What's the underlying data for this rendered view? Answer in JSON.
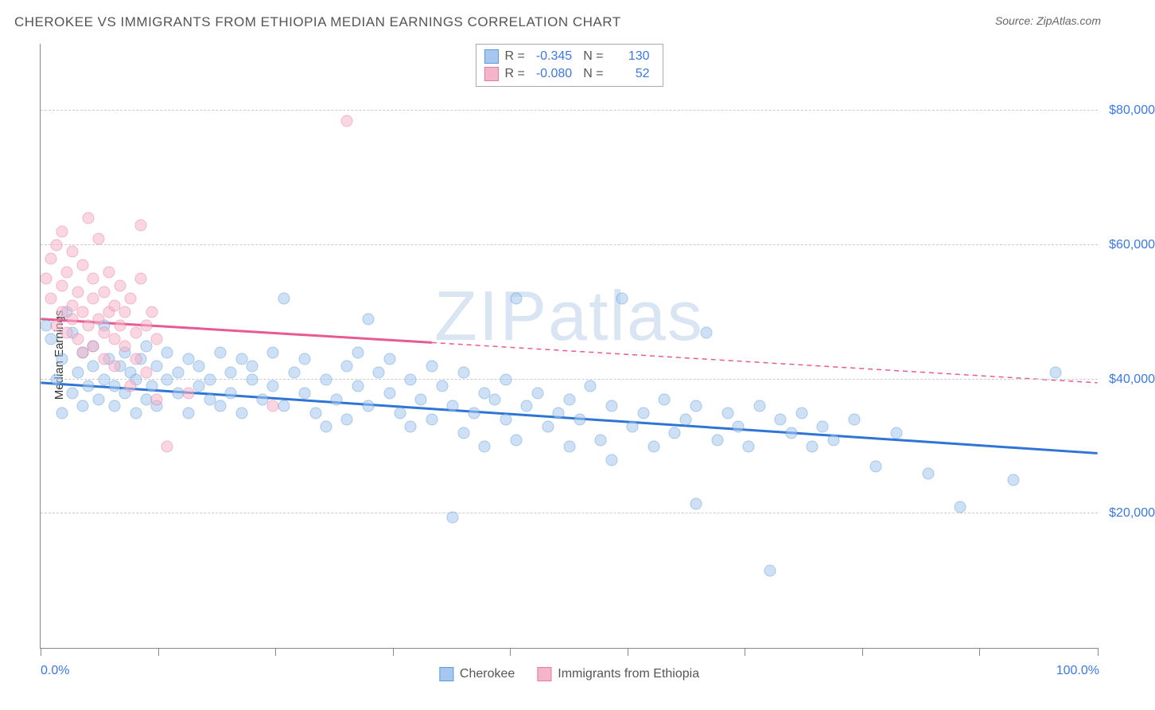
{
  "title": "CHEROKEE VS IMMIGRANTS FROM ETHIOPIA MEDIAN EARNINGS CORRELATION CHART",
  "source": "Source: ZipAtlas.com",
  "watermark": "ZIPatlas",
  "chart": {
    "type": "scatter",
    "y_axis_label": "Median Earnings",
    "x_start_label": "0.0%",
    "x_end_label": "100.0%",
    "xlim": [
      0,
      100
    ],
    "ylim": [
      0,
      90000
    ],
    "y_ticks": [
      {
        "value": 20000,
        "label": "$20,000"
      },
      {
        "value": 40000,
        "label": "$40,000"
      },
      {
        "value": 60000,
        "label": "$60,000"
      },
      {
        "value": 80000,
        "label": "$80,000"
      }
    ],
    "x_tick_positions": [
      0,
      11.1,
      22.2,
      33.3,
      44.4,
      55.5,
      66.6,
      77.7,
      88.8,
      100
    ],
    "background_color": "#ffffff",
    "grid_color": "#cccccc",
    "axis_color": "#888888",
    "marker_radius": 7.5,
    "marker_opacity": 0.55,
    "title_fontsize": 17,
    "label_fontsize": 15,
    "tick_fontsize": 16,
    "series": [
      {
        "name": "Cherokee",
        "fill_color": "#a6c8f0",
        "stroke_color": "#5b9bd5",
        "line_color": "#2e75d6",
        "R": "-0.345",
        "N": "130",
        "trend": {
          "x1": 0,
          "y1": 39500,
          "x2": 100,
          "y2": 29000,
          "solid_until": 100,
          "dash": false
        },
        "points": [
          [
            0.5,
            48000
          ],
          [
            1,
            46000
          ],
          [
            1.5,
            40000
          ],
          [
            2,
            35000
          ],
          [
            2,
            43000
          ],
          [
            2.5,
            50000
          ],
          [
            3,
            47000
          ],
          [
            3,
            38000
          ],
          [
            3.5,
            41000
          ],
          [
            4,
            44000
          ],
          [
            4,
            36000
          ],
          [
            4.5,
            39000
          ],
          [
            5,
            42000
          ],
          [
            5,
            45000
          ],
          [
            5.5,
            37000
          ],
          [
            6,
            40000
          ],
          [
            6,
            48000
          ],
          [
            6.5,
            43000
          ],
          [
            7,
            39000
          ],
          [
            7,
            36000
          ],
          [
            7.5,
            42000
          ],
          [
            8,
            44000
          ],
          [
            8,
            38000
          ],
          [
            8.5,
            41000
          ],
          [
            9,
            35000
          ],
          [
            9,
            40000
          ],
          [
            9.5,
            43000
          ],
          [
            10,
            37000
          ],
          [
            10,
            45000
          ],
          [
            10.5,
            39000
          ],
          [
            11,
            42000
          ],
          [
            11,
            36000
          ],
          [
            12,
            40000
          ],
          [
            12,
            44000
          ],
          [
            13,
            38000
          ],
          [
            13,
            41000
          ],
          [
            14,
            43000
          ],
          [
            14,
            35000
          ],
          [
            15,
            39000
          ],
          [
            15,
            42000
          ],
          [
            16,
            37000
          ],
          [
            16,
            40000
          ],
          [
            17,
            44000
          ],
          [
            17,
            36000
          ],
          [
            18,
            41000
          ],
          [
            18,
            38000
          ],
          [
            19,
            43000
          ],
          [
            19,
            35000
          ],
          [
            20,
            40000
          ],
          [
            20,
            42000
          ],
          [
            21,
            37000
          ],
          [
            22,
            39000
          ],
          [
            22,
            44000
          ],
          [
            23,
            52000
          ],
          [
            23,
            36000
          ],
          [
            24,
            41000
          ],
          [
            25,
            38000
          ],
          [
            25,
            43000
          ],
          [
            26,
            35000
          ],
          [
            27,
            40000
          ],
          [
            27,
            33000
          ],
          [
            28,
            37000
          ],
          [
            29,
            42000
          ],
          [
            29,
            34000
          ],
          [
            30,
            39000
          ],
          [
            30,
            44000
          ],
          [
            31,
            36000
          ],
          [
            31,
            49000
          ],
          [
            32,
            41000
          ],
          [
            33,
            38000
          ],
          [
            33,
            43000
          ],
          [
            34,
            35000
          ],
          [
            35,
            40000
          ],
          [
            35,
            33000
          ],
          [
            36,
            37000
          ],
          [
            37,
            42000
          ],
          [
            37,
            34000
          ],
          [
            38,
            39000
          ],
          [
            39,
            36000
          ],
          [
            39,
            19500
          ],
          [
            40,
            41000
          ],
          [
            40,
            32000
          ],
          [
            41,
            35000
          ],
          [
            42,
            38000
          ],
          [
            42,
            30000
          ],
          [
            43,
            37000
          ],
          [
            44,
            34000
          ],
          [
            44,
            40000
          ],
          [
            45,
            52000
          ],
          [
            45,
            31000
          ],
          [
            46,
            36000
          ],
          [
            47,
            38000
          ],
          [
            48,
            33000
          ],
          [
            49,
            35000
          ],
          [
            50,
            37000
          ],
          [
            50,
            30000
          ],
          [
            51,
            34000
          ],
          [
            52,
            39000
          ],
          [
            53,
            31000
          ],
          [
            54,
            36000
          ],
          [
            54,
            28000
          ],
          [
            55,
            52000
          ],
          [
            56,
            33000
          ],
          [
            57,
            35000
          ],
          [
            58,
            30000
          ],
          [
            59,
            37000
          ],
          [
            60,
            32000
          ],
          [
            61,
            34000
          ],
          [
            62,
            36000
          ],
          [
            62,
            21500
          ],
          [
            63,
            47000
          ],
          [
            64,
            31000
          ],
          [
            65,
            35000
          ],
          [
            66,
            33000
          ],
          [
            67,
            30000
          ],
          [
            68,
            36000
          ],
          [
            69,
            11500
          ],
          [
            70,
            34000
          ],
          [
            71,
            32000
          ],
          [
            72,
            35000
          ],
          [
            73,
            30000
          ],
          [
            74,
            33000
          ],
          [
            75,
            31000
          ],
          [
            77,
            34000
          ],
          [
            79,
            27000
          ],
          [
            81,
            32000
          ],
          [
            84,
            26000
          ],
          [
            87,
            21000
          ],
          [
            92,
            25000
          ],
          [
            96,
            41000
          ]
        ]
      },
      {
        "name": "Immigrants from Ethiopia",
        "fill_color": "#f5b5c8",
        "stroke_color": "#e87aa0",
        "line_color": "#e85a92",
        "R": "-0.080",
        "N": "52",
        "trend": {
          "x1": 0,
          "y1": 49000,
          "x2": 100,
          "y2": 39500,
          "solid_until": 37,
          "dash": true
        },
        "points": [
          [
            0.5,
            55000
          ],
          [
            1,
            52000
          ],
          [
            1,
            58000
          ],
          [
            1.5,
            48000
          ],
          [
            1.5,
            60000
          ],
          [
            2,
            54000
          ],
          [
            2,
            50000
          ],
          [
            2,
            62000
          ],
          [
            2.5,
            47000
          ],
          [
            2.5,
            56000
          ],
          [
            3,
            51000
          ],
          [
            3,
            49000
          ],
          [
            3,
            59000
          ],
          [
            3.5,
            53000
          ],
          [
            3.5,
            46000
          ],
          [
            4,
            50000
          ],
          [
            4,
            57000
          ],
          [
            4,
            44000
          ],
          [
            4.5,
            64000
          ],
          [
            4.5,
            48000
          ],
          [
            5,
            52000
          ],
          [
            5,
            45000
          ],
          [
            5,
            55000
          ],
          [
            5.5,
            61000
          ],
          [
            5.5,
            49000
          ],
          [
            6,
            47000
          ],
          [
            6,
            53000
          ],
          [
            6,
            43000
          ],
          [
            6.5,
            50000
          ],
          [
            6.5,
            56000
          ],
          [
            7,
            46000
          ],
          [
            7,
            51000
          ],
          [
            7,
            42000
          ],
          [
            7.5,
            48000
          ],
          [
            7.5,
            54000
          ],
          [
            8,
            45000
          ],
          [
            8,
            50000
          ],
          [
            8.5,
            39000
          ],
          [
            8.5,
            52000
          ],
          [
            9,
            47000
          ],
          [
            9,
            43000
          ],
          [
            9.5,
            55000
          ],
          [
            9.5,
            63000
          ],
          [
            10,
            48000
          ],
          [
            10,
            41000
          ],
          [
            10.5,
            50000
          ],
          [
            11,
            37000
          ],
          [
            11,
            46000
          ],
          [
            12,
            30000
          ],
          [
            14,
            38000
          ],
          [
            22,
            36000
          ],
          [
            29,
            78500
          ]
        ]
      }
    ]
  }
}
